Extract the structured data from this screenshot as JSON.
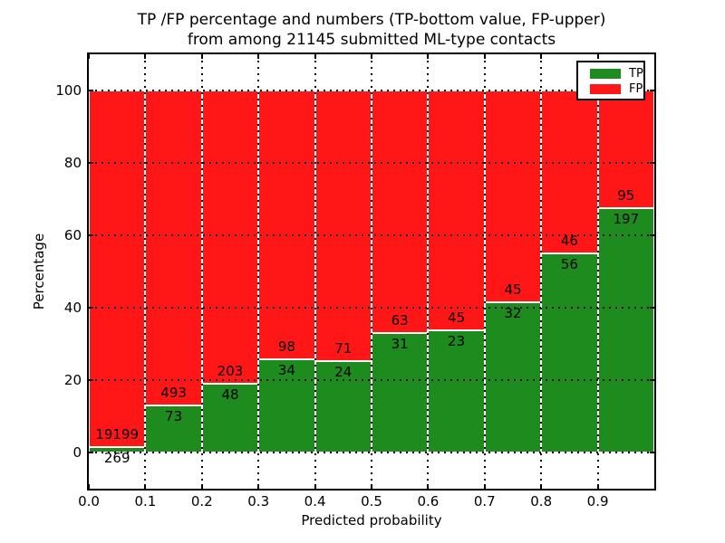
{
  "figure": {
    "title_line1": "TP /FP percentage and numbers (TP-bottom value, FP-upper)",
    "title_line2": "from among 21145 submitted ML-type contacts",
    "background_color": "#ffffff",
    "text_color": "#000000"
  },
  "chart_data": {
    "type": "bar",
    "stacked": true,
    "normalized_to_percent": true,
    "title": "TP /FP percentage and numbers (TP-bottom value, FP-upper)\nfrom among 21145 submitted ML-type contacts",
    "xlabel": "Predicted probability",
    "ylabel": "Percentage",
    "total_contacts": 21145,
    "bin_width": 0.1,
    "bin_edges": [
      0.0,
      0.1,
      0.2,
      0.3,
      0.4,
      0.5,
      0.6,
      0.7,
      0.8,
      0.9,
      1.0
    ],
    "categories": [
      "0.0-0.1",
      "0.1-0.2",
      "0.2-0.3",
      "0.3-0.4",
      "0.4-0.5",
      "0.5-0.6",
      "0.6-0.7",
      "0.7-0.8",
      "0.8-0.9",
      "0.9-1.0"
    ],
    "series": [
      {
        "name": "TP",
        "color": "#1e8b1e",
        "counts": [
          269,
          73,
          48,
          34,
          24,
          31,
          23,
          32,
          56,
          197
        ]
      },
      {
        "name": "FP",
        "color": "#ff1616",
        "counts": [
          19199,
          493,
          203,
          98,
          71,
          63,
          45,
          45,
          46,
          95
        ]
      }
    ],
    "tp_percent_of_bin": [
      1.4,
      12.9,
      19.1,
      25.8,
      25.3,
      33.0,
      33.8,
      41.6,
      54.9,
      67.5
    ],
    "x_tick_labels": [
      "0.0",
      "0.1",
      "0.2",
      "0.3",
      "0.4",
      "0.5",
      "0.6",
      "0.7",
      "0.8",
      "0.9"
    ],
    "y_tick_labels": [
      "0",
      "20",
      "40",
      "60",
      "80",
      "100"
    ],
    "y_tick_values": [
      0,
      20,
      40,
      60,
      80,
      100
    ],
    "xlim": [
      0.0,
      1.0
    ],
    "ylim": [
      -10,
      110
    ],
    "grid": {
      "on": true,
      "linestyle": "dotted",
      "color": "#000000"
    },
    "bar_edge_color": "#ffffff",
    "legend": {
      "position": "upper right",
      "entries": [
        "TP",
        "FP"
      ]
    }
  }
}
